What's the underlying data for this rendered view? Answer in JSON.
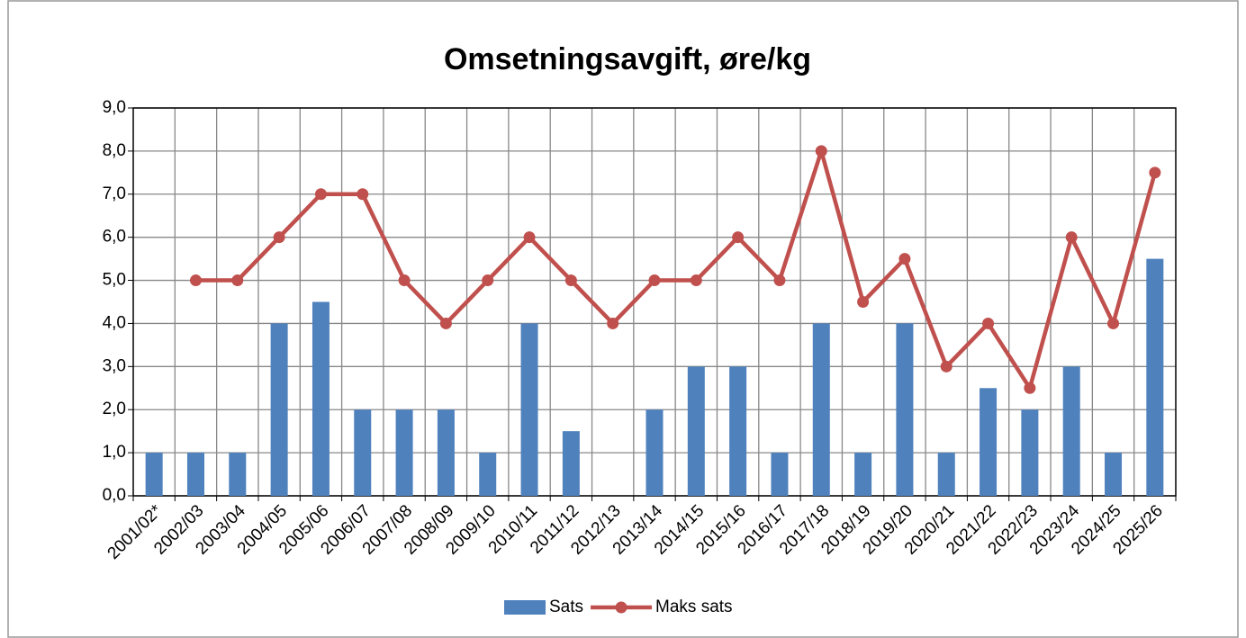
{
  "chart_data": {
    "type": "bar",
    "title": "Omsetningsavgift, øre/kg",
    "categories": [
      "2001/02*",
      "2002/03",
      "2003/04",
      "2004/05",
      "2005/06",
      "2006/07",
      "2007/08",
      "2008/09",
      "2009/10",
      "2010/11",
      "2011/12",
      "2012/13",
      "2013/14",
      "2014/15",
      "2015/16",
      "2016/17",
      "2017/18",
      "2018/19",
      "2019/20",
      "2020/21",
      "2021/22",
      "2022/23",
      "2023/24",
      "2024/25",
      "2025/26"
    ],
    "series": [
      {
        "name": "Sats",
        "type": "bar",
        "color": "#4f81bd",
        "values": [
          1,
          1,
          1,
          4,
          4.5,
          2,
          2,
          2,
          1,
          4,
          1.5,
          0,
          2,
          3,
          3,
          1,
          4,
          1,
          4,
          1,
          2.5,
          2,
          3,
          1,
          5.5
        ]
      },
      {
        "name": "Maks sats",
        "type": "line",
        "color": "#c0504d",
        "values": [
          null,
          5,
          5,
          6,
          7,
          7,
          5,
          4,
          5,
          6,
          5,
          4,
          5,
          5,
          6,
          5,
          8,
          4.5,
          5.5,
          3,
          4,
          2.5,
          6,
          4,
          7.5
        ]
      }
    ],
    "ylim": [
      0,
      9
    ],
    "yticks": [
      {
        "value": 0,
        "label": "0,0"
      },
      {
        "value": 1,
        "label": "1,0"
      },
      {
        "value": 2,
        "label": "2,0"
      },
      {
        "value": 3,
        "label": "3,0"
      },
      {
        "value": 4,
        "label": "4,0"
      },
      {
        "value": 5,
        "label": "5,0"
      },
      {
        "value": 6,
        "label": "6,0"
      },
      {
        "value": 7,
        "label": "7,0"
      },
      {
        "value": 8,
        "label": "8,0"
      },
      {
        "value": 9,
        "label": "9,0"
      }
    ],
    "grid": true,
    "legend": "bottom"
  }
}
